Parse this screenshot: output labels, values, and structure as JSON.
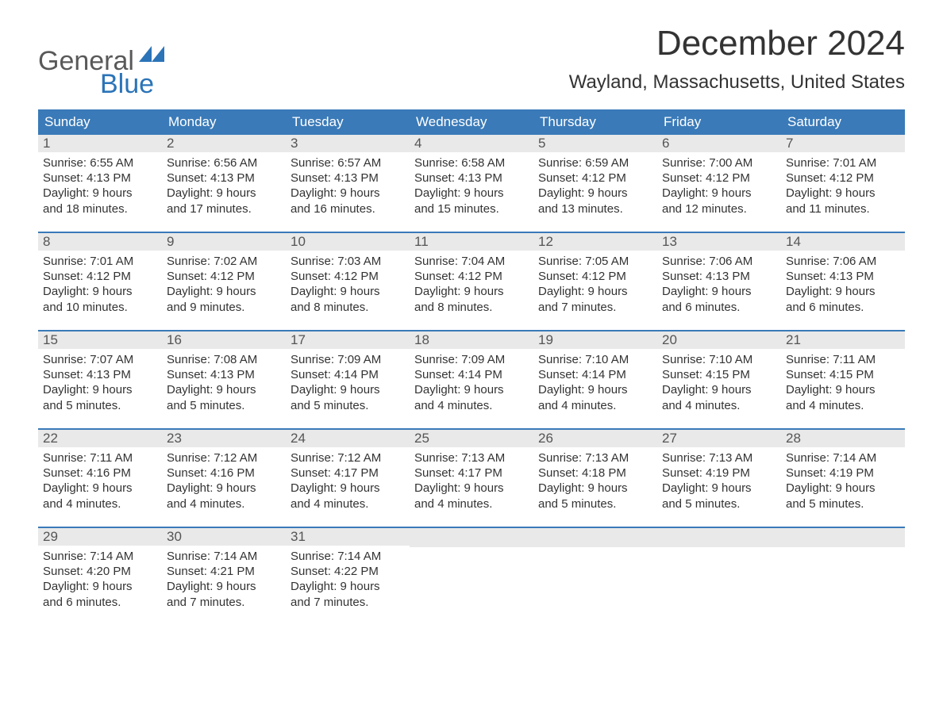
{
  "logo": {
    "word1": "General",
    "word2": "Blue",
    "accent_color": "#2b74b8",
    "text_color": "#595959"
  },
  "title": "December 2024",
  "location": "Wayland, Massachusetts, United States",
  "colors": {
    "header_bg": "#3a7ab8",
    "header_text": "#ffffff",
    "daynum_bg": "#e9e9e9",
    "week_divider": "#3a7ab8",
    "body_text": "#333333",
    "page_bg": "#ffffff"
  },
  "typography": {
    "title_fontsize": 44,
    "location_fontsize": 24,
    "header_fontsize": 17,
    "body_fontsize": 15
  },
  "day_headers": [
    "Sunday",
    "Monday",
    "Tuesday",
    "Wednesday",
    "Thursday",
    "Friday",
    "Saturday"
  ],
  "weeks": [
    [
      {
        "num": "1",
        "sunrise": "Sunrise: 6:55 AM",
        "sunset": "Sunset: 4:13 PM",
        "dl1": "Daylight: 9 hours",
        "dl2": "and 18 minutes."
      },
      {
        "num": "2",
        "sunrise": "Sunrise: 6:56 AM",
        "sunset": "Sunset: 4:13 PM",
        "dl1": "Daylight: 9 hours",
        "dl2": "and 17 minutes."
      },
      {
        "num": "3",
        "sunrise": "Sunrise: 6:57 AM",
        "sunset": "Sunset: 4:13 PM",
        "dl1": "Daylight: 9 hours",
        "dl2": "and 16 minutes."
      },
      {
        "num": "4",
        "sunrise": "Sunrise: 6:58 AM",
        "sunset": "Sunset: 4:13 PM",
        "dl1": "Daylight: 9 hours",
        "dl2": "and 15 minutes."
      },
      {
        "num": "5",
        "sunrise": "Sunrise: 6:59 AM",
        "sunset": "Sunset: 4:12 PM",
        "dl1": "Daylight: 9 hours",
        "dl2": "and 13 minutes."
      },
      {
        "num": "6",
        "sunrise": "Sunrise: 7:00 AM",
        "sunset": "Sunset: 4:12 PM",
        "dl1": "Daylight: 9 hours",
        "dl2": "and 12 minutes."
      },
      {
        "num": "7",
        "sunrise": "Sunrise: 7:01 AM",
        "sunset": "Sunset: 4:12 PM",
        "dl1": "Daylight: 9 hours",
        "dl2": "and 11 minutes."
      }
    ],
    [
      {
        "num": "8",
        "sunrise": "Sunrise: 7:01 AM",
        "sunset": "Sunset: 4:12 PM",
        "dl1": "Daylight: 9 hours",
        "dl2": "and 10 minutes."
      },
      {
        "num": "9",
        "sunrise": "Sunrise: 7:02 AM",
        "sunset": "Sunset: 4:12 PM",
        "dl1": "Daylight: 9 hours",
        "dl2": "and 9 minutes."
      },
      {
        "num": "10",
        "sunrise": "Sunrise: 7:03 AM",
        "sunset": "Sunset: 4:12 PM",
        "dl1": "Daylight: 9 hours",
        "dl2": "and 8 minutes."
      },
      {
        "num": "11",
        "sunrise": "Sunrise: 7:04 AM",
        "sunset": "Sunset: 4:12 PM",
        "dl1": "Daylight: 9 hours",
        "dl2": "and 8 minutes."
      },
      {
        "num": "12",
        "sunrise": "Sunrise: 7:05 AM",
        "sunset": "Sunset: 4:12 PM",
        "dl1": "Daylight: 9 hours",
        "dl2": "and 7 minutes."
      },
      {
        "num": "13",
        "sunrise": "Sunrise: 7:06 AM",
        "sunset": "Sunset: 4:13 PM",
        "dl1": "Daylight: 9 hours",
        "dl2": "and 6 minutes."
      },
      {
        "num": "14",
        "sunrise": "Sunrise: 7:06 AM",
        "sunset": "Sunset: 4:13 PM",
        "dl1": "Daylight: 9 hours",
        "dl2": "and 6 minutes."
      }
    ],
    [
      {
        "num": "15",
        "sunrise": "Sunrise: 7:07 AM",
        "sunset": "Sunset: 4:13 PM",
        "dl1": "Daylight: 9 hours",
        "dl2": "and 5 minutes."
      },
      {
        "num": "16",
        "sunrise": "Sunrise: 7:08 AM",
        "sunset": "Sunset: 4:13 PM",
        "dl1": "Daylight: 9 hours",
        "dl2": "and 5 minutes."
      },
      {
        "num": "17",
        "sunrise": "Sunrise: 7:09 AM",
        "sunset": "Sunset: 4:14 PM",
        "dl1": "Daylight: 9 hours",
        "dl2": "and 5 minutes."
      },
      {
        "num": "18",
        "sunrise": "Sunrise: 7:09 AM",
        "sunset": "Sunset: 4:14 PM",
        "dl1": "Daylight: 9 hours",
        "dl2": "and 4 minutes."
      },
      {
        "num": "19",
        "sunrise": "Sunrise: 7:10 AM",
        "sunset": "Sunset: 4:14 PM",
        "dl1": "Daylight: 9 hours",
        "dl2": "and 4 minutes."
      },
      {
        "num": "20",
        "sunrise": "Sunrise: 7:10 AM",
        "sunset": "Sunset: 4:15 PM",
        "dl1": "Daylight: 9 hours",
        "dl2": "and 4 minutes."
      },
      {
        "num": "21",
        "sunrise": "Sunrise: 7:11 AM",
        "sunset": "Sunset: 4:15 PM",
        "dl1": "Daylight: 9 hours",
        "dl2": "and 4 minutes."
      }
    ],
    [
      {
        "num": "22",
        "sunrise": "Sunrise: 7:11 AM",
        "sunset": "Sunset: 4:16 PM",
        "dl1": "Daylight: 9 hours",
        "dl2": "and 4 minutes."
      },
      {
        "num": "23",
        "sunrise": "Sunrise: 7:12 AM",
        "sunset": "Sunset: 4:16 PM",
        "dl1": "Daylight: 9 hours",
        "dl2": "and 4 minutes."
      },
      {
        "num": "24",
        "sunrise": "Sunrise: 7:12 AM",
        "sunset": "Sunset: 4:17 PM",
        "dl1": "Daylight: 9 hours",
        "dl2": "and 4 minutes."
      },
      {
        "num": "25",
        "sunrise": "Sunrise: 7:13 AM",
        "sunset": "Sunset: 4:17 PM",
        "dl1": "Daylight: 9 hours",
        "dl2": "and 4 minutes."
      },
      {
        "num": "26",
        "sunrise": "Sunrise: 7:13 AM",
        "sunset": "Sunset: 4:18 PM",
        "dl1": "Daylight: 9 hours",
        "dl2": "and 5 minutes."
      },
      {
        "num": "27",
        "sunrise": "Sunrise: 7:13 AM",
        "sunset": "Sunset: 4:19 PM",
        "dl1": "Daylight: 9 hours",
        "dl2": "and 5 minutes."
      },
      {
        "num": "28",
        "sunrise": "Sunrise: 7:14 AM",
        "sunset": "Sunset: 4:19 PM",
        "dl1": "Daylight: 9 hours",
        "dl2": "and 5 minutes."
      }
    ],
    [
      {
        "num": "29",
        "sunrise": "Sunrise: 7:14 AM",
        "sunset": "Sunset: 4:20 PM",
        "dl1": "Daylight: 9 hours",
        "dl2": "and 6 minutes."
      },
      {
        "num": "30",
        "sunrise": "Sunrise: 7:14 AM",
        "sunset": "Sunset: 4:21 PM",
        "dl1": "Daylight: 9 hours",
        "dl2": "and 7 minutes."
      },
      {
        "num": "31",
        "sunrise": "Sunrise: 7:14 AM",
        "sunset": "Sunset: 4:22 PM",
        "dl1": "Daylight: 9 hours",
        "dl2": "and 7 minutes."
      },
      null,
      null,
      null,
      null
    ]
  ]
}
